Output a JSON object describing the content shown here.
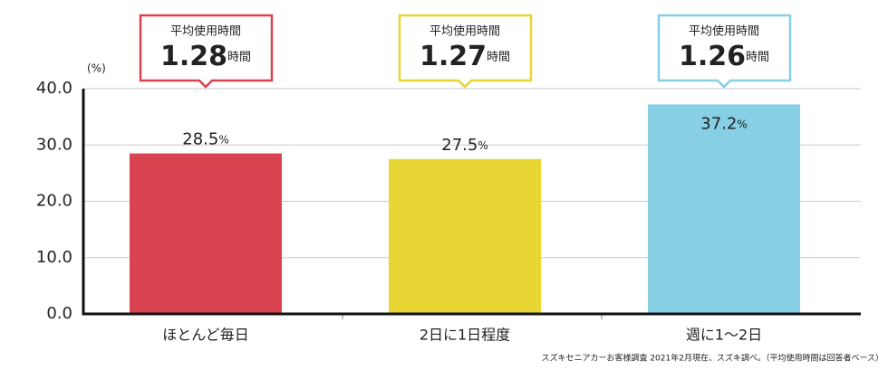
{
  "chart_data": {
    "type": "bar",
    "y_axis_label": "(%)",
    "categories": [
      "ほとんど毎日",
      "2日に1日程度",
      "週に1〜2日"
    ],
    "values": [
      28.5,
      27.5,
      37.2
    ],
    "value_unit": "%",
    "colors": [
      "#d9434f",
      "#e8d634",
      "#86cfe4"
    ],
    "ylim": [
      0,
      40
    ],
    "yticks": [
      {
        "value": 0,
        "label": "0.0"
      },
      {
        "value": 10,
        "label": "10.0"
      },
      {
        "value": 20,
        "label": "20.0"
      },
      {
        "value": 30,
        "label": "30.0"
      },
      {
        "value": 40,
        "label": "40.0"
      }
    ],
    "grid": true,
    "callouts": [
      {
        "title": "平均使用時間",
        "value": 1.28,
        "unit": "時間"
      },
      {
        "title": "平均使用時間",
        "value": 1.27,
        "unit": "時間"
      },
      {
        "title": "平均使用時間",
        "value": 1.26,
        "unit": "時間"
      }
    ],
    "footnote": "スズキセニアカーお客様調査 2021年2月現在、スズキ調べ。（平均使用時間は回答者ベース）"
  }
}
